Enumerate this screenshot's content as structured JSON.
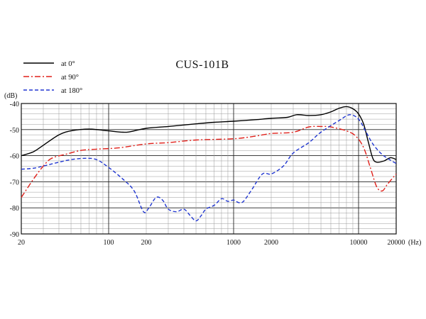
{
  "chart_data": {
    "type": "line",
    "title": "CUS-101B",
    "xlabel": "(Hz)",
    "ylabel": "(dB)",
    "x_scale": "log",
    "xlim": [
      20,
      20000
    ],
    "ylim": [
      -90,
      -40
    ],
    "grid": true,
    "legend_position": "top-left",
    "x_ticks": [
      "20",
      "100",
      "200",
      "1000",
      "2000",
      "10000",
      "20000"
    ],
    "x_tick_values": [
      20,
      100,
      200,
      1000,
      2000,
      10000,
      20000
    ],
    "y_ticks": [
      "-40",
      "-50",
      "-60",
      "-70",
      "-80",
      "-90"
    ],
    "y_tick_values": [
      -40,
      -50,
      -60,
      -70,
      -80,
      -90
    ],
    "series": [
      {
        "name": "at 0°",
        "color": "#000000",
        "dash": "solid",
        "points": [
          [
            20,
            -60
          ],
          [
            25,
            -58.5
          ],
          [
            30,
            -56
          ],
          [
            40,
            -52
          ],
          [
            50,
            -50.5
          ],
          [
            70,
            -49.8
          ],
          [
            100,
            -50.5
          ],
          [
            130,
            -51
          ],
          [
            150,
            -50.8
          ],
          [
            200,
            -49.5
          ],
          [
            300,
            -48.8
          ],
          [
            500,
            -47.8
          ],
          [
            700,
            -47.2
          ],
          [
            1000,
            -46.8
          ],
          [
            1500,
            -46.2
          ],
          [
            2000,
            -45.7
          ],
          [
            2700,
            -45.3
          ],
          [
            3200,
            -44.3
          ],
          [
            4000,
            -44.6
          ],
          [
            5000,
            -44.3
          ],
          [
            6000,
            -43.2
          ],
          [
            7000,
            -41.8
          ],
          [
            8000,
            -41.2
          ],
          [
            9000,
            -42
          ],
          [
            10000,
            -44
          ],
          [
            11000,
            -48
          ],
          [
            12000,
            -55
          ],
          [
            13000,
            -61
          ],
          [
            14000,
            -62.5
          ],
          [
            16000,
            -62
          ],
          [
            18000,
            -60.8
          ],
          [
            20000,
            -61.5
          ]
        ]
      },
      {
        "name": "at 90°",
        "color": "#e0201a",
        "dash": "dash-dot",
        "points": [
          [
            20,
            -76
          ],
          [
            25,
            -69
          ],
          [
            30,
            -64
          ],
          [
            35,
            -61
          ],
          [
            45,
            -59.5
          ],
          [
            60,
            -58
          ],
          [
            80,
            -57.5
          ],
          [
            120,
            -57
          ],
          [
            200,
            -55.5
          ],
          [
            300,
            -55
          ],
          [
            500,
            -54
          ],
          [
            1000,
            -53.5
          ],
          [
            1500,
            -52.5
          ],
          [
            2000,
            -51.5
          ],
          [
            3000,
            -51
          ],
          [
            4000,
            -49
          ],
          [
            5000,
            -48.8
          ],
          [
            6000,
            -49
          ],
          [
            8000,
            -50.5
          ],
          [
            9500,
            -52.5
          ],
          [
            11000,
            -57
          ],
          [
            12500,
            -65
          ],
          [
            14000,
            -72
          ],
          [
            15500,
            -73.5
          ],
          [
            17000,
            -71
          ],
          [
            20000,
            -67
          ]
        ]
      },
      {
        "name": "at 180°",
        "color": "#2036d0",
        "dash": "dashed",
        "points": [
          [
            20,
            -65.2
          ],
          [
            25,
            -64.8
          ],
          [
            30,
            -64
          ],
          [
            40,
            -62.5
          ],
          [
            50,
            -61.5
          ],
          [
            65,
            -61
          ],
          [
            80,
            -61.5
          ],
          [
            100,
            -64.5
          ],
          [
            130,
            -69
          ],
          [
            160,
            -73.5
          ],
          [
            190,
            -81.5
          ],
          [
            210,
            -80
          ],
          [
            240,
            -76
          ],
          [
            270,
            -77
          ],
          [
            300,
            -80.5
          ],
          [
            350,
            -81.5
          ],
          [
            400,
            -80.5
          ],
          [
            450,
            -83
          ],
          [
            500,
            -85
          ],
          [
            550,
            -83
          ],
          [
            600,
            -80.5
          ],
          [
            700,
            -79
          ],
          [
            800,
            -76.5
          ],
          [
            900,
            -77.5
          ],
          [
            1000,
            -77
          ],
          [
            1100,
            -78
          ],
          [
            1200,
            -77.5
          ],
          [
            1400,
            -73
          ],
          [
            1700,
            -67
          ],
          [
            2000,
            -67
          ],
          [
            2500,
            -64
          ],
          [
            3000,
            -59
          ],
          [
            4000,
            -55
          ],
          [
            5000,
            -51
          ],
          [
            7000,
            -46.5
          ],
          [
            8500,
            -44.3
          ],
          [
            10000,
            -46
          ],
          [
            11500,
            -51
          ],
          [
            13000,
            -55.5
          ],
          [
            15000,
            -59
          ],
          [
            17000,
            -61
          ],
          [
            20000,
            -63
          ]
        ]
      }
    ]
  }
}
